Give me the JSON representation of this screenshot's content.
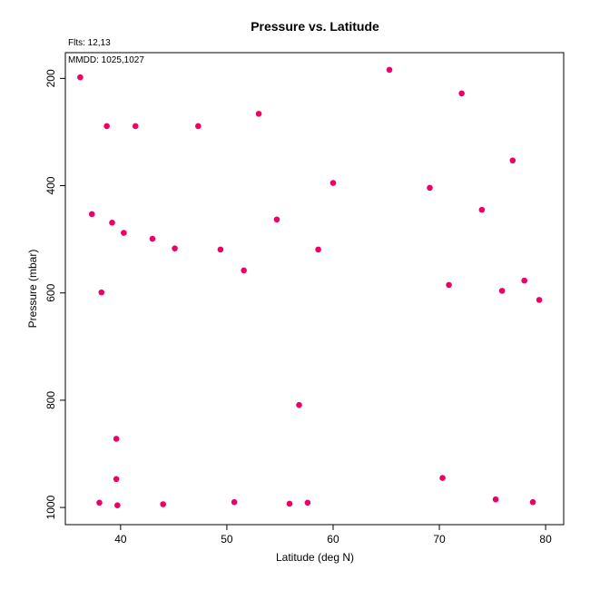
{
  "chart_data": {
    "type": "scatter",
    "title": "Pressure vs. Latitude",
    "xlabel": "Latitude (deg N)",
    "ylabel": "Pressure (mbar)",
    "xlim": [
      34.8,
      81.7
    ],
    "ylim": [
      1032,
      152
    ],
    "y_inverted": true,
    "grid": false,
    "x_ticks": [
      40,
      50,
      60,
      70,
      80
    ],
    "y_ticks": [
      200,
      400,
      600,
      800,
      1000
    ],
    "annotations": {
      "files": "Flts: 12,13",
      "mmdd": "MMDD: 1025,1027"
    },
    "series": [
      {
        "color": "#ee0066",
        "points": [
          [
            36.2,
            198
          ],
          [
            38.7,
            289
          ],
          [
            41.4,
            289
          ],
          [
            47.3,
            289
          ],
          [
            53.0,
            266
          ],
          [
            37.3,
            453
          ],
          [
            39.2,
            469
          ],
          [
            40.3,
            488
          ],
          [
            43.0,
            499
          ],
          [
            45.1,
            517
          ],
          [
            49.4,
            519
          ],
          [
            51.6,
            558
          ],
          [
            54.7,
            463
          ],
          [
            58.6,
            519
          ],
          [
            60.0,
            395
          ],
          [
            38.2,
            599
          ],
          [
            56.8,
            809
          ],
          [
            39.6,
            872
          ],
          [
            39.6,
            947
          ],
          [
            38.0,
            991
          ],
          [
            39.7,
            996
          ],
          [
            44.0,
            994
          ],
          [
            50.7,
            990
          ],
          [
            55.9,
            993
          ],
          [
            57.6,
            991
          ],
          [
            65.3,
            184
          ],
          [
            72.1,
            228
          ],
          [
            76.9,
            353
          ],
          [
            69.1,
            404
          ],
          [
            74.0,
            445
          ],
          [
            70.9,
            585
          ],
          [
            75.9,
            596
          ],
          [
            78.0,
            577
          ],
          [
            79.4,
            613
          ],
          [
            70.3,
            945
          ],
          [
            75.3,
            985
          ],
          [
            78.8,
            990
          ]
        ]
      }
    ]
  }
}
